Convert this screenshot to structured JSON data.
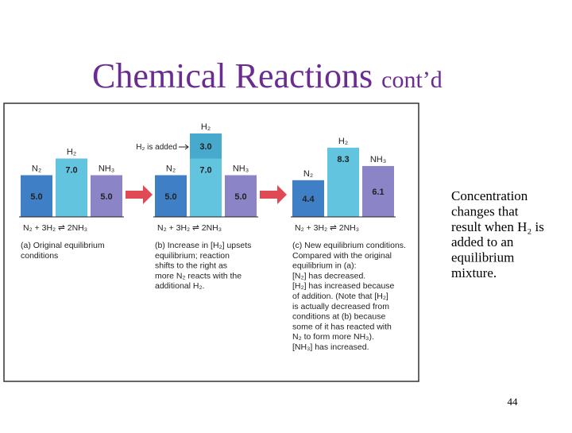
{
  "title": "Chemical Reactions",
  "title_suffix": "cont’d",
  "figure": {
    "added_label": "H₂ is added",
    "added_value": {
      "value": 3,
      "label": "3.0"
    },
    "panels": [
      {
        "bars": [
          {
            "label": "N₂",
            "value": {
              "value": 5,
              "label": "5.0"
            },
            "color": "#3f7fc6"
          },
          {
            "label": "H₂",
            "value": {
              "value": 7,
              "label": "7.0"
            },
            "color": "#62c4df"
          },
          {
            "label": "NH₃",
            "value": {
              "value": 5,
              "label": "5.0"
            },
            "color": "#8b84c6"
          }
        ],
        "equation": "N₂  +  3H₂ ⇌ 2NH₃",
        "caption": [
          "(a) Original equilibrium",
          "conditions"
        ]
      },
      {
        "bars": [
          {
            "label": "N₂",
            "value": {
              "value": 5,
              "label": "5.0"
            },
            "color": "#3f7fc6"
          },
          {
            "label": "H₂",
            "value": {
              "value": 7,
              "label": "7.0"
            },
            "color": "#62c4df"
          },
          {
            "label": "NH₃",
            "value": {
              "value": 5,
              "label": "5.0"
            },
            "color": "#8b84c6"
          }
        ],
        "equation": "N₂  +  3H₂ ⇌ 2NH₃",
        "caption": [
          "(b) Increase in [H₂] upsets",
          "equilibrium; reaction",
          "shifts to the right as",
          "more N₂ reacts with the",
          "additional H₂."
        ]
      },
      {
        "bars": [
          {
            "label": "N₂",
            "value": {
              "value": 4.4,
              "label": "4.4"
            },
            "color": "#3f7fc6"
          },
          {
            "label": "H₂",
            "value": {
              "value": 8.3,
              "label": "8.3"
            },
            "color": "#62c4df"
          },
          {
            "label": "NH₃",
            "value": {
              "value": 6.1,
              "label": "6.1"
            },
            "color": "#8b84c6"
          }
        ],
        "equation": "N₂  +  3H₂ ⇌ 2NH₃",
        "caption": [
          "(c) New equilibrium conditions.",
          "Compared with the original",
          "equilibrium in (a):",
          "[N₂] has decreased.",
          "[H₂] has increased because",
          "of addition. (Note that [H₂]",
          "is actually decreased from",
          "conditions at (b) because",
          "some of it has reacted with",
          "N₂ to form more NH₃).",
          "[NH₃] has increased."
        ]
      }
    ]
  },
  "description": [
    "Concentration",
    "changes that",
    "result when H₂ is",
    "added to an",
    "equilibrium",
    "mixture."
  ],
  "page_number": "44"
}
